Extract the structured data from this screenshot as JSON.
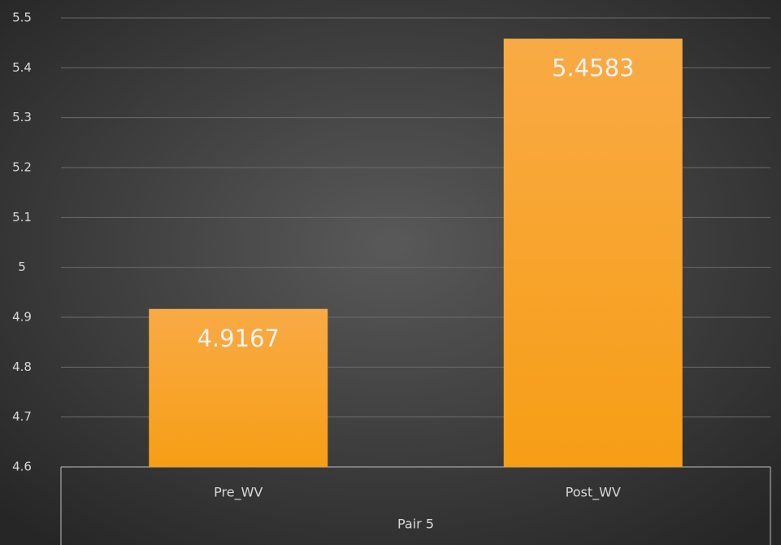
{
  "chart_data": {
    "type": "bar",
    "categories": [
      "Pre_WV",
      "Post_WV"
    ],
    "group_label": "Pair 5",
    "values": [
      4.9167,
      5.4583
    ],
    "color": "#f7a531",
    "ylim": [
      4.6,
      5.5
    ],
    "yticks": [
      4.6,
      4.7,
      4.8,
      4.9,
      5,
      5.1,
      5.2,
      5.3,
      5.4,
      5.5
    ],
    "grid": true
  }
}
